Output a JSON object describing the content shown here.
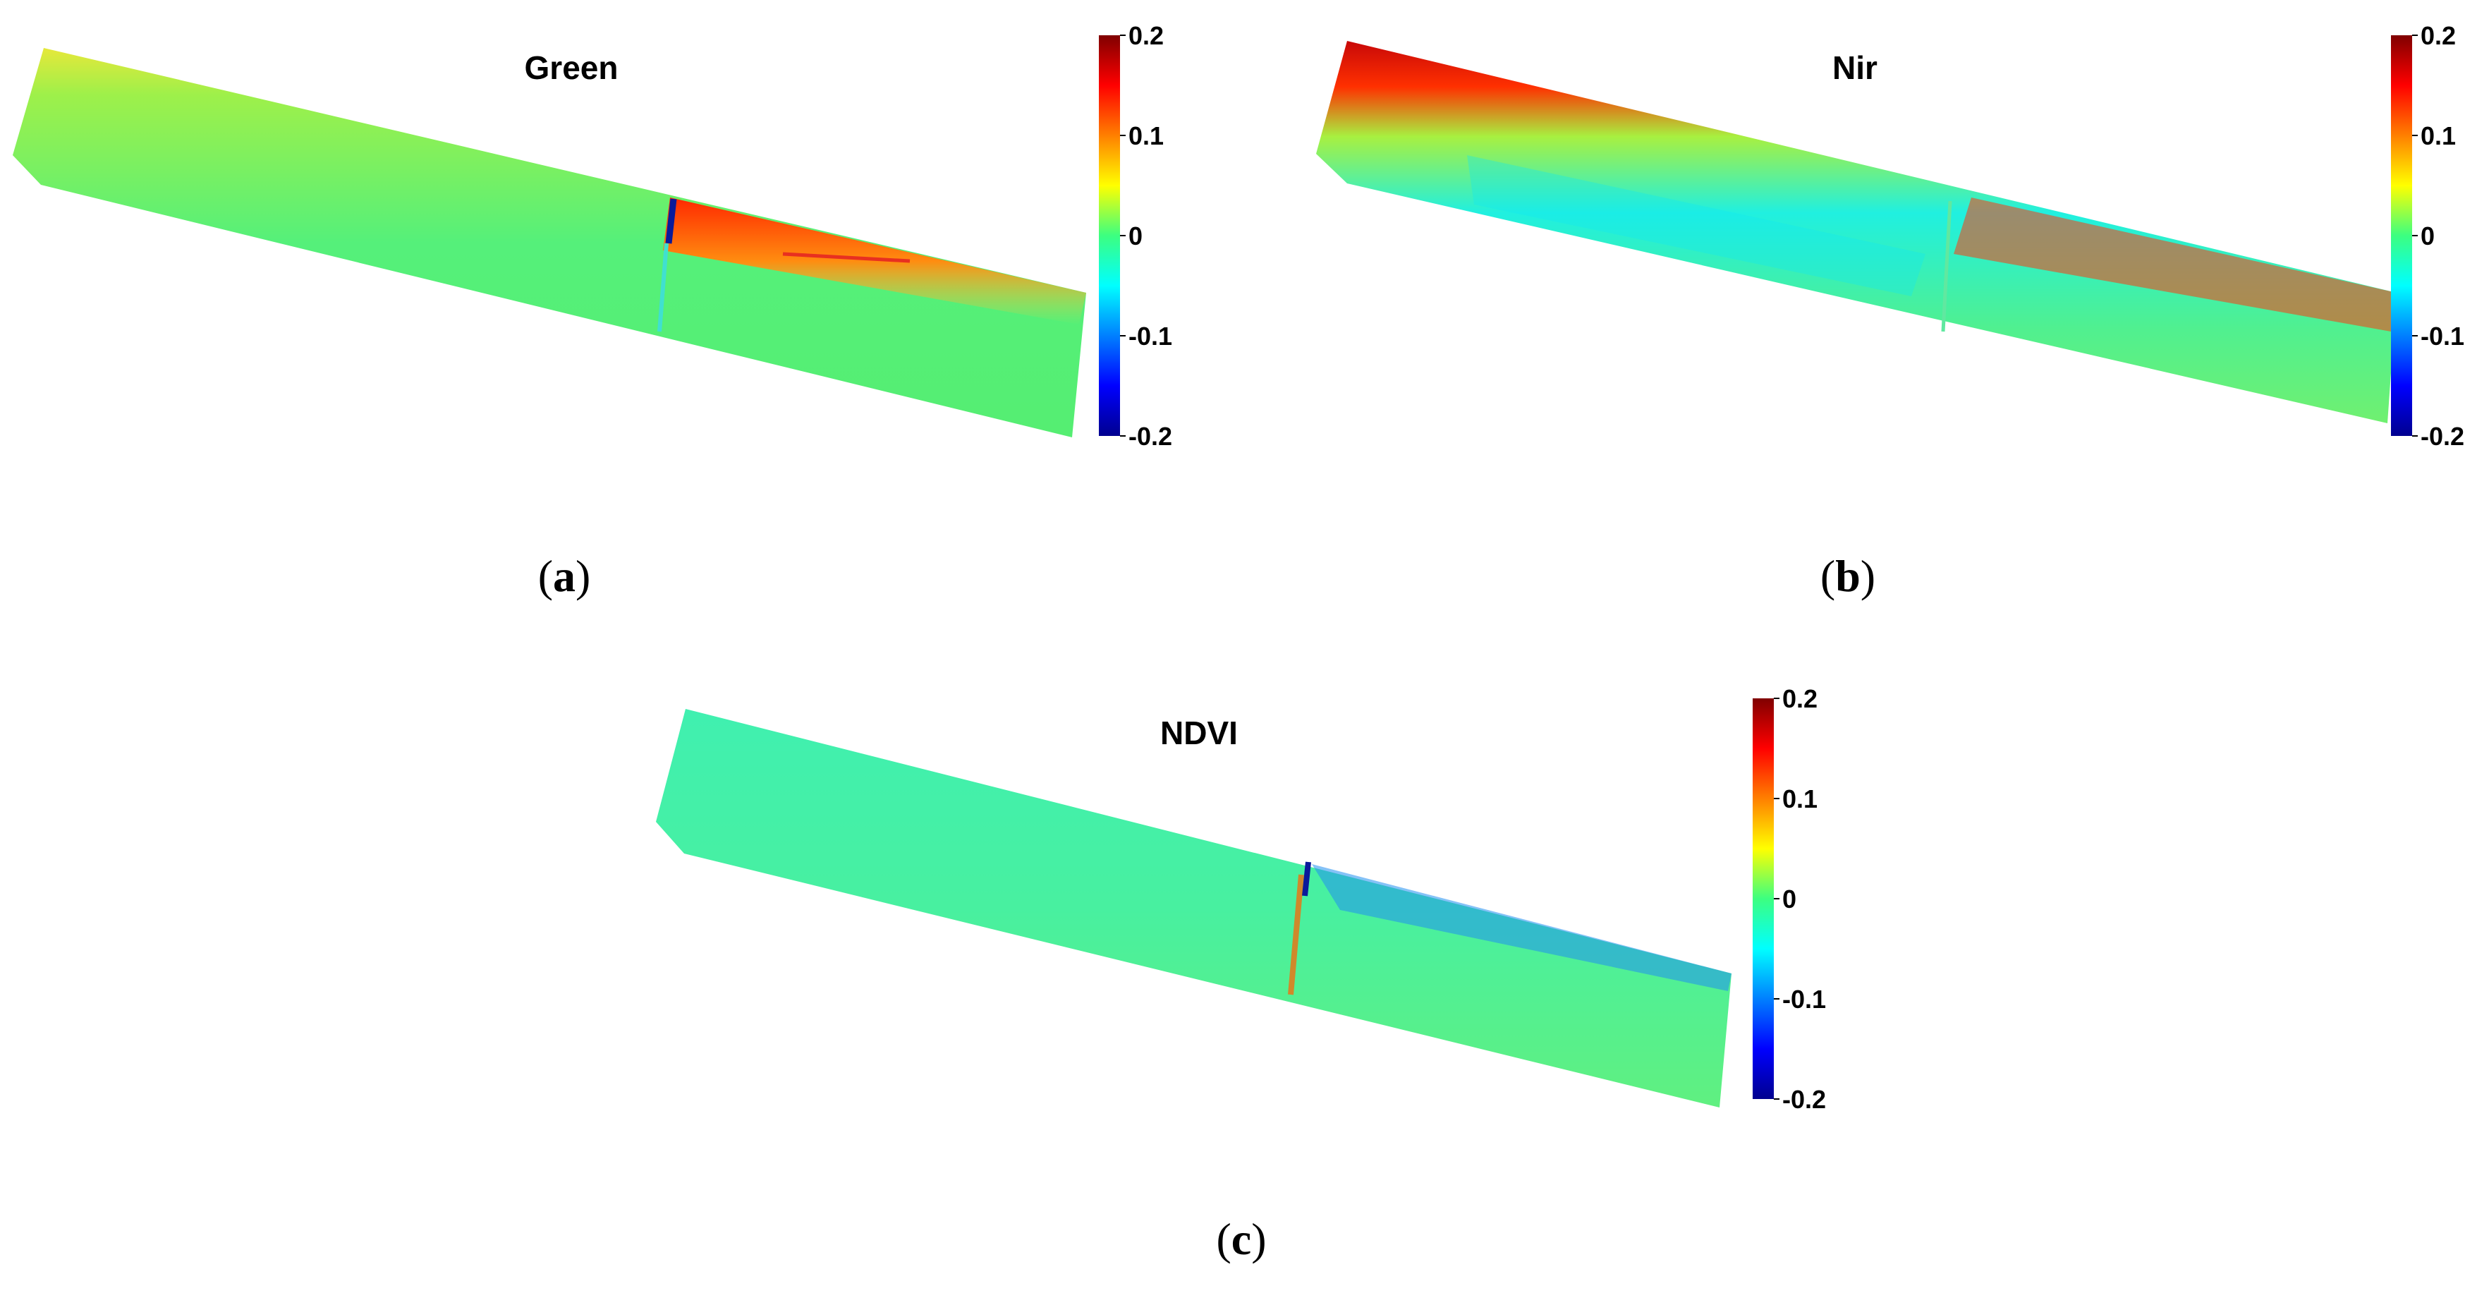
{
  "chart_data": [
    {
      "type": "heatmap",
      "panel_label": "a",
      "title": "Green",
      "colorbar": {
        "colormap": "jet",
        "min": -0.2,
        "max": 0.2,
        "ticks": [
          "0.2",
          "0.1",
          "0",
          "-0.1",
          "-0.2"
        ]
      },
      "dominant_value": 0.0,
      "features": [
        {
          "region": "top edge",
          "value": 0.05
        },
        {
          "region": "upper-right portion",
          "value": 0.15
        },
        {
          "region": "dark seam near middle",
          "value": -0.2
        }
      ]
    },
    {
      "type": "heatmap",
      "panel_label": "b",
      "title": "Nir",
      "colorbar": {
        "colormap": "jet",
        "min": -0.2,
        "max": 0.2,
        "ticks": [
          "0.2",
          "0.1",
          "0",
          "-0.1",
          "-0.2"
        ]
      },
      "dominant_value": -0.03,
      "features": [
        {
          "region": "top edge band",
          "value": 0.18
        },
        {
          "region": "upper-right portion",
          "value": 0.15
        },
        {
          "region": "middle interior",
          "value": -0.05
        }
      ]
    },
    {
      "type": "heatmap",
      "panel_label": "c",
      "title": "NDVI",
      "colorbar": {
        "colormap": "jet",
        "min": -0.2,
        "max": 0.2,
        "ticks": [
          "0.2",
          "0.1",
          "0",
          "-0.1",
          "-0.2"
        ]
      },
      "dominant_value": 0.0,
      "features": [
        {
          "region": "upper-right portion",
          "value": -0.08
        },
        {
          "region": "seam near middle",
          "value": 0.12
        },
        {
          "region": "dark seam core",
          "value": -0.2
        }
      ]
    }
  ],
  "captions": [
    {
      "open": "(",
      "letter": "a",
      "close": ")"
    },
    {
      "open": "(",
      "letter": "b",
      "close": ")"
    },
    {
      "open": "(",
      "letter": "c",
      "close": ")"
    }
  ]
}
